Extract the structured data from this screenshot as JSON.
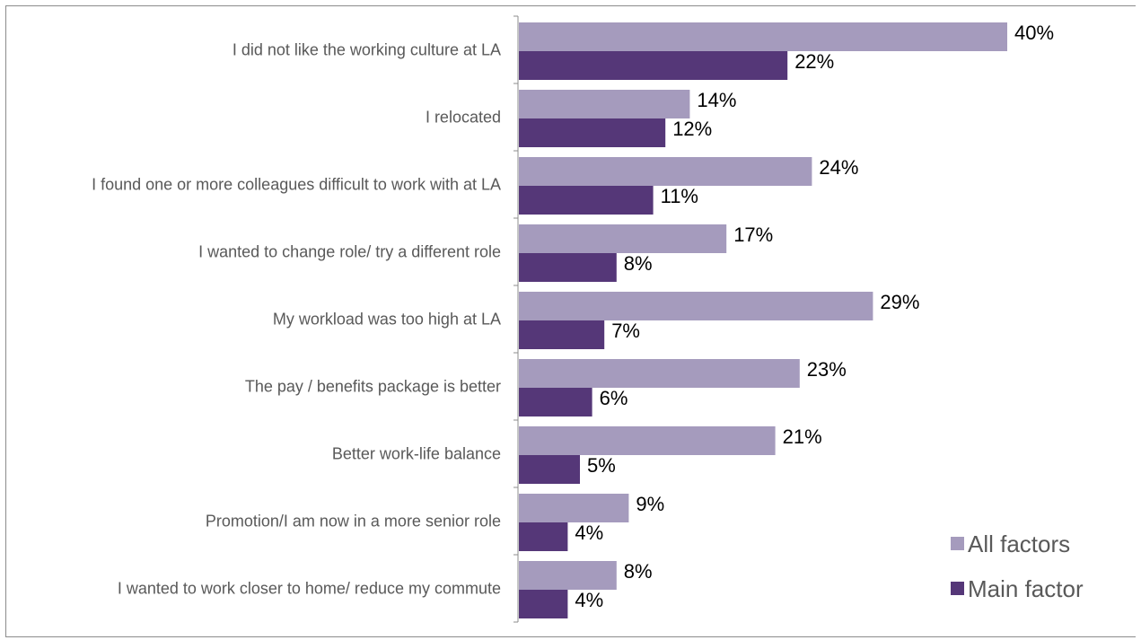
{
  "chart_data": {
    "type": "bar",
    "orientation": "horizontal",
    "categories": [
      "I did not like the working culture at LA",
      "I relocated",
      "I found one or more colleagues difficult to work with at LA",
      "I wanted to change role/ try a different role",
      "My workload was too high at LA",
      "The pay / benefits package is better",
      "Better work-life balance",
      "Promotion/I am now in a more senior role",
      "I wanted to work closer to home/ reduce my commute"
    ],
    "series": [
      {
        "name": "All factors",
        "color": "#a59bbd",
        "values": [
          40,
          14,
          24,
          17,
          29,
          23,
          21,
          9,
          8
        ],
        "labels": [
          "40%",
          "14%",
          "24%",
          "17%",
          "29%",
          "23%",
          "21%",
          "9%",
          "8%"
        ]
      },
      {
        "name": "Main factor",
        "color": "#553778",
        "values": [
          22,
          12,
          11,
          8,
          7,
          6,
          5,
          4,
          4
        ],
        "labels": [
          "22%",
          "12%",
          "11%",
          "8%",
          "7%",
          "6%",
          "5%",
          "4%",
          "4%"
        ]
      }
    ],
    "unit": "%",
    "xlim": [
      0,
      50
    ],
    "legend_position": "bottom-right",
    "grid": false,
    "title": "",
    "xlabel": "",
    "ylabel": ""
  }
}
